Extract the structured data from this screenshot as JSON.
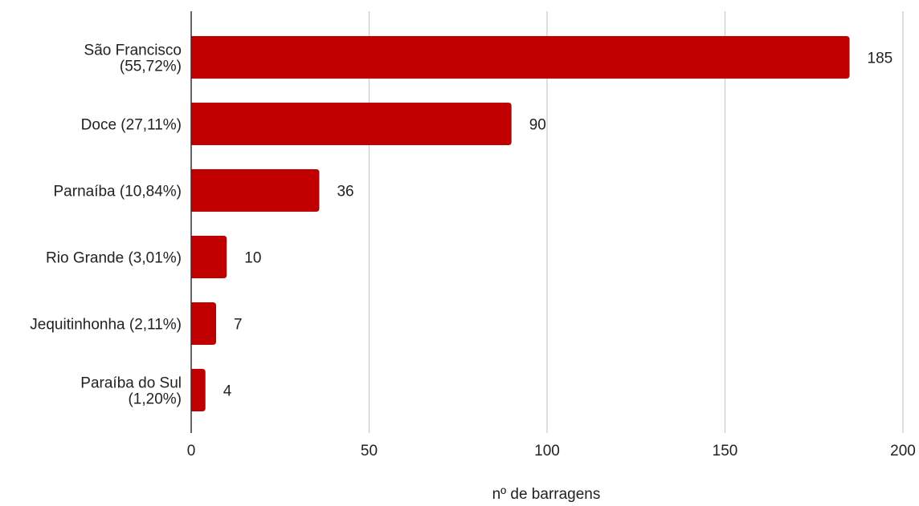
{
  "chart_data": {
    "type": "bar",
    "orientation": "horizontal",
    "categories": [
      [
        "São Francisco",
        "(55,72%)"
      ],
      [
        "Doce (27,11%)"
      ],
      [
        "Parnaíba (10,84%)"
      ],
      [
        "Rio Grande (3,01%)"
      ],
      [
        "Jequitinhonha (2,11%)"
      ],
      [
        "Paraíba do Sul",
        "(1,20%)"
      ]
    ],
    "values": [
      185,
      90,
      36,
      10,
      7,
      4
    ],
    "data_labels": [
      "185",
      "90",
      "36",
      "10",
      "7",
      "4"
    ],
    "xlabel": "nº de barragens",
    "xlim": [
      0,
      200
    ],
    "xticks": [
      0,
      50,
      100,
      150,
      200
    ],
    "xtick_labels": [
      "0",
      "50",
      "100",
      "150",
      "200"
    ],
    "grid": "vertical",
    "legend": "none",
    "bar_color": "#c00000",
    "grid_color": "#cccccc",
    "axis_color": "#333333",
    "text_color": "#222222"
  }
}
